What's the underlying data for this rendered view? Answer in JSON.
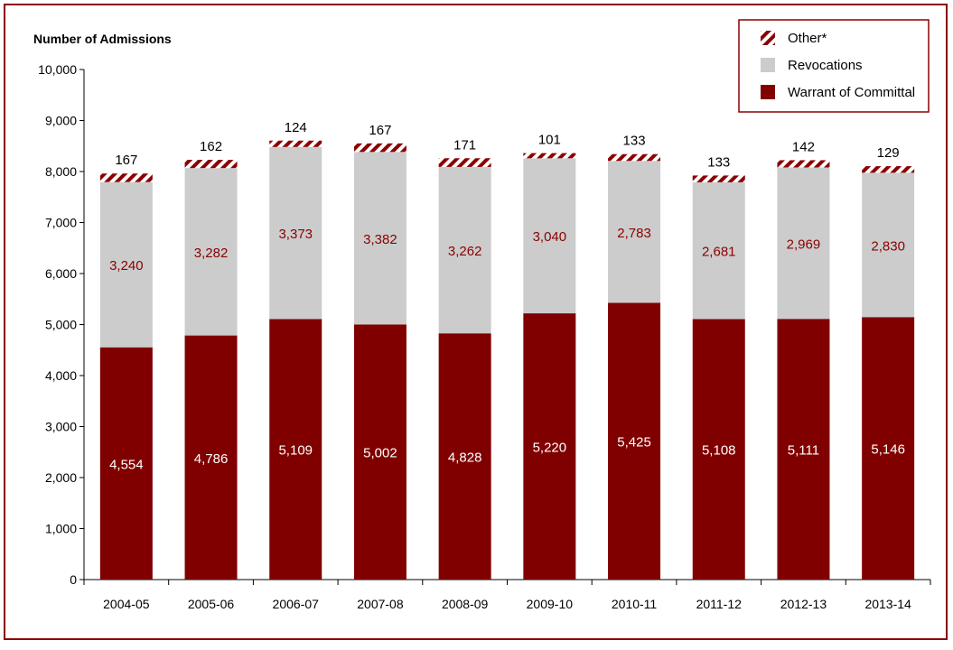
{
  "chart_data": {
    "type": "bar",
    "stacked": true,
    "ylabel": "Number of Admissions",
    "xlabel": "",
    "ylim": [
      0,
      10000
    ],
    "yticks": [
      0,
      1000,
      2000,
      3000,
      4000,
      5000,
      6000,
      7000,
      8000,
      9000,
      10000
    ],
    "grid": false,
    "legend_position": "top-right",
    "categories": [
      "2004-05",
      "2005-06",
      "2006-07",
      "2007-08",
      "2008-09",
      "2009-10",
      "2010-11",
      "2011-12",
      "2012-13",
      "2013-14"
    ],
    "series": [
      {
        "name": "Warrant of Committal",
        "color": "#800000",
        "label_color": "#ffffff",
        "values": [
          4554,
          4786,
          5109,
          5002,
          4828,
          5220,
          5425,
          5108,
          5111,
          5146
        ]
      },
      {
        "name": "Revocations",
        "color": "#cccccc",
        "label_color": "#8b0000",
        "values": [
          3240,
          3282,
          3373,
          3382,
          3262,
          3040,
          2783,
          2681,
          2969,
          2830
        ]
      },
      {
        "name": "Other*",
        "color": "#8b0000",
        "pattern": "diagonal-hatch",
        "label_color": "#000000",
        "values": [
          167,
          162,
          124,
          167,
          171,
          101,
          133,
          133,
          142,
          129
        ]
      }
    ],
    "frame_color": "#8b0000"
  }
}
